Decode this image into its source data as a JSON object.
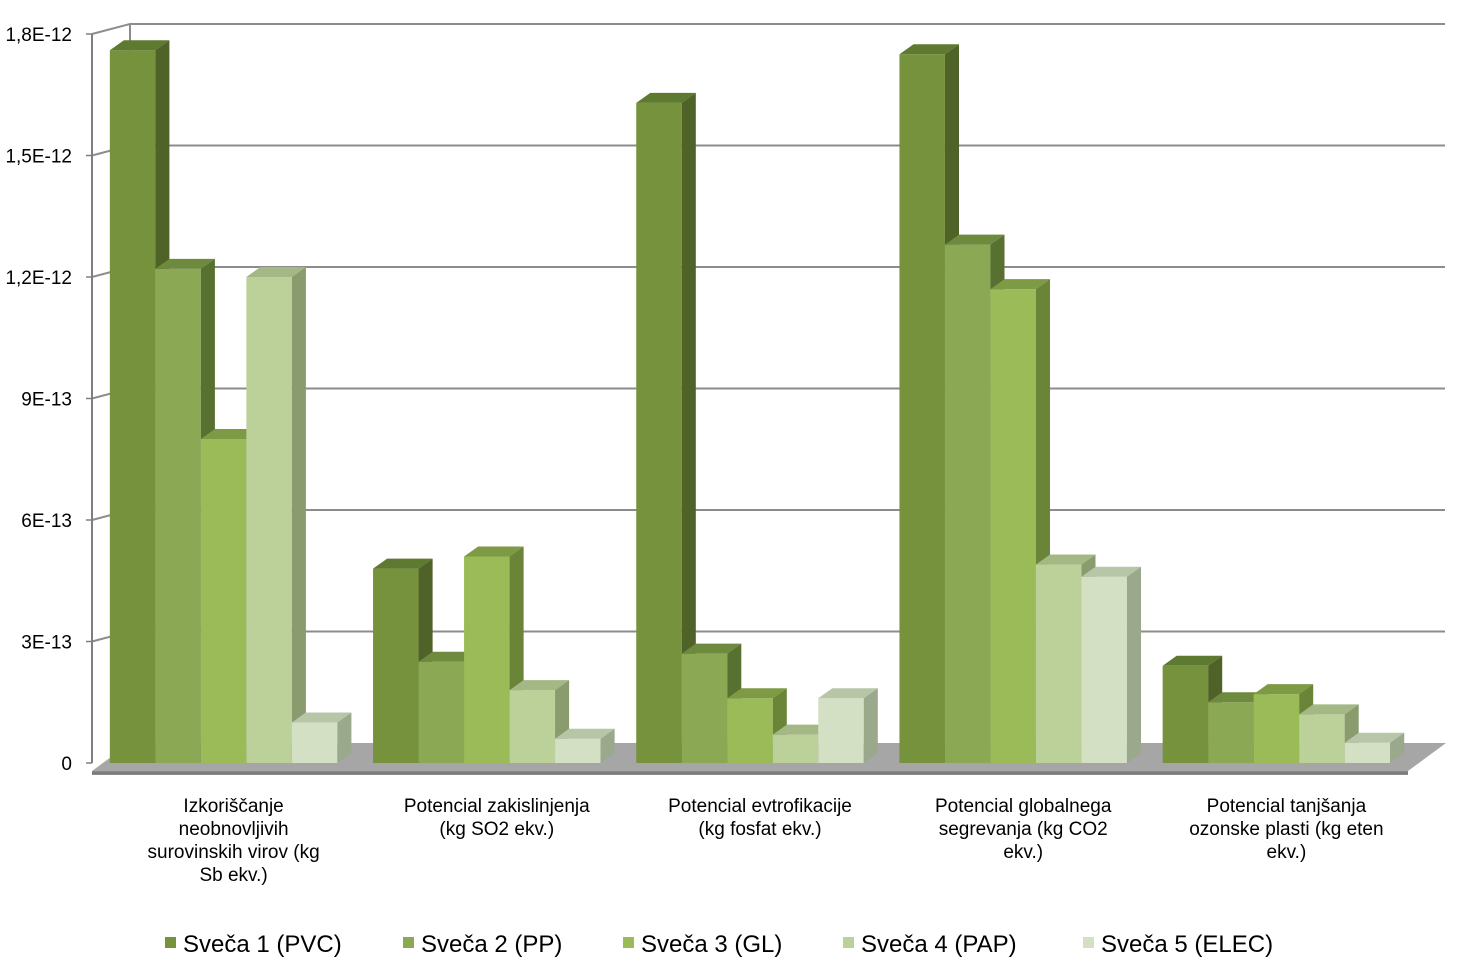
{
  "chart_data": {
    "type": "bar",
    "style": "3d-clustered-column",
    "categories": [
      [
        "Izkoriščanje",
        "neobnovljivih",
        "surovinskih virov (kg",
        "Sb ekv.)"
      ],
      [
        "Potencial zakislinjenja",
        "(kg SO2 ekv.)"
      ],
      [
        "Potencial evtrofikacije",
        "(kg fosfat ekv.)"
      ],
      [
        "Potencial globalnega",
        "segrevanja (kg CO2",
        "ekv.)"
      ],
      [
        "Potencial tanjšanja",
        "ozonske plasti (kg eten",
        "ekv.)"
      ]
    ],
    "series": [
      {
        "name": "Sveča 1 (PVC)",
        "color": "#76923C",
        "top": "#5E7A30",
        "side": "#4F6228",
        "values": [
          1.76e-12,
          4.8e-13,
          1.63e-12,
          1.75e-12,
          2.4e-13
        ]
      },
      {
        "name": "Sveča 2 (PP)",
        "color": "#8BA854",
        "top": "#6E8A3E",
        "side": "#587030",
        "values": [
          1.22e-12,
          2.5e-13,
          2.7e-13,
          1.28e-12,
          1.5e-13
        ]
      },
      {
        "name": "Sveča 3 (GL)",
        "color": "#9BBB59",
        "top": "#7E9A44",
        "side": "#6A8438",
        "values": [
          8e-13,
          5.1e-13,
          1.6e-13,
          1.17e-12,
          1.7e-13
        ]
      },
      {
        "name": "Sveča 4 (PAP)",
        "color": "#BCD19A",
        "top": "#A3B884",
        "side": "#8A9C6E",
        "values": [
          1.2e-12,
          1.8e-13,
          7e-14,
          4.9e-13,
          1.2e-13
        ]
      },
      {
        "name": "Sveča 5 (ELEC)",
        "color": "#D4E0C4",
        "top": "#B8C6A8",
        "side": "#9AA88C",
        "values": [
          1e-13,
          6e-14,
          1.6e-13,
          4.6e-13,
          5e-14
        ]
      }
    ],
    "yticks": [
      "0",
      "3E-13",
      "6E-13",
      "9E-13",
      "1,2E-12",
      "1,5E-12",
      "1,8E-12"
    ],
    "ylim": [
      0,
      1.8e-12
    ],
    "grid": true,
    "legend_position": "bottom",
    "colors": {
      "floor": "#A6A6A6",
      "gridline": "#8C8C8C",
      "axis": "#7F7F7F"
    }
  }
}
